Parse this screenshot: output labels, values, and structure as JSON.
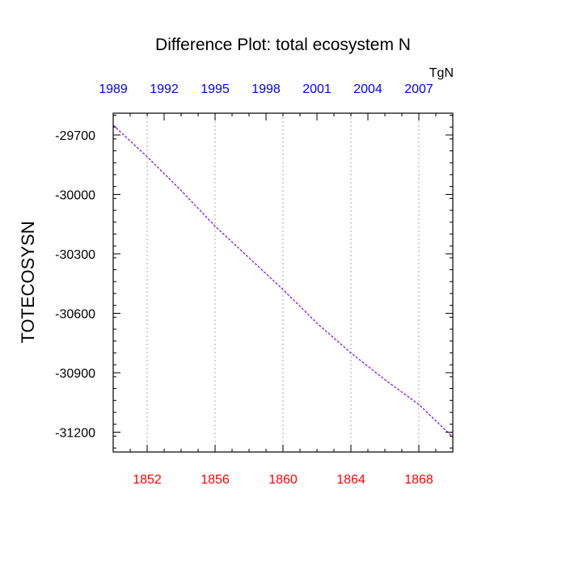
{
  "chart_data": {
    "type": "line",
    "title": "Difference Plot: total ecosystem N",
    "units": "TgN",
    "ylabel": "TOTECOSYSN",
    "xlabel": "",
    "ylim": [
      -31300,
      -29590
    ],
    "yticks": [
      -29700,
      -30000,
      -30300,
      -30600,
      -30900,
      -31200
    ],
    "y_tick_labels": [
      "-29700",
      "-30000",
      "-30300",
      "-30600",
      "-30900",
      "-31200"
    ],
    "xlim": [
      1850,
      1870
    ],
    "bottom_axis": {
      "ticks": [
        1852,
        1856,
        1860,
        1864,
        1868
      ],
      "labels": [
        "1852",
        "1856",
        "1860",
        "1864",
        "1868"
      ],
      "color": "#ff0000"
    },
    "top_axis": {
      "ticks": [
        1989,
        1992,
        1995,
        1998,
        2001,
        2004,
        2007
      ],
      "labels": [
        "1989",
        "1992",
        "1995",
        "1998",
        "2001",
        "2004",
        "2007"
      ],
      "range": [
        1989,
        2009
      ],
      "color": "#0000ff"
    },
    "grid": "vertical dotted at bottom-axis ticks",
    "series": [
      {
        "color": "#7a00ff",
        "x": [
          1850,
          1852,
          1854,
          1856,
          1858,
          1860,
          1862,
          1864,
          1866,
          1868,
          1870
        ],
        "y": [
          -29650,
          -29810,
          -29980,
          -30160,
          -30320,
          -30480,
          -30650,
          -30800,
          -30935,
          -31060,
          -31225
        ]
      }
    ]
  }
}
